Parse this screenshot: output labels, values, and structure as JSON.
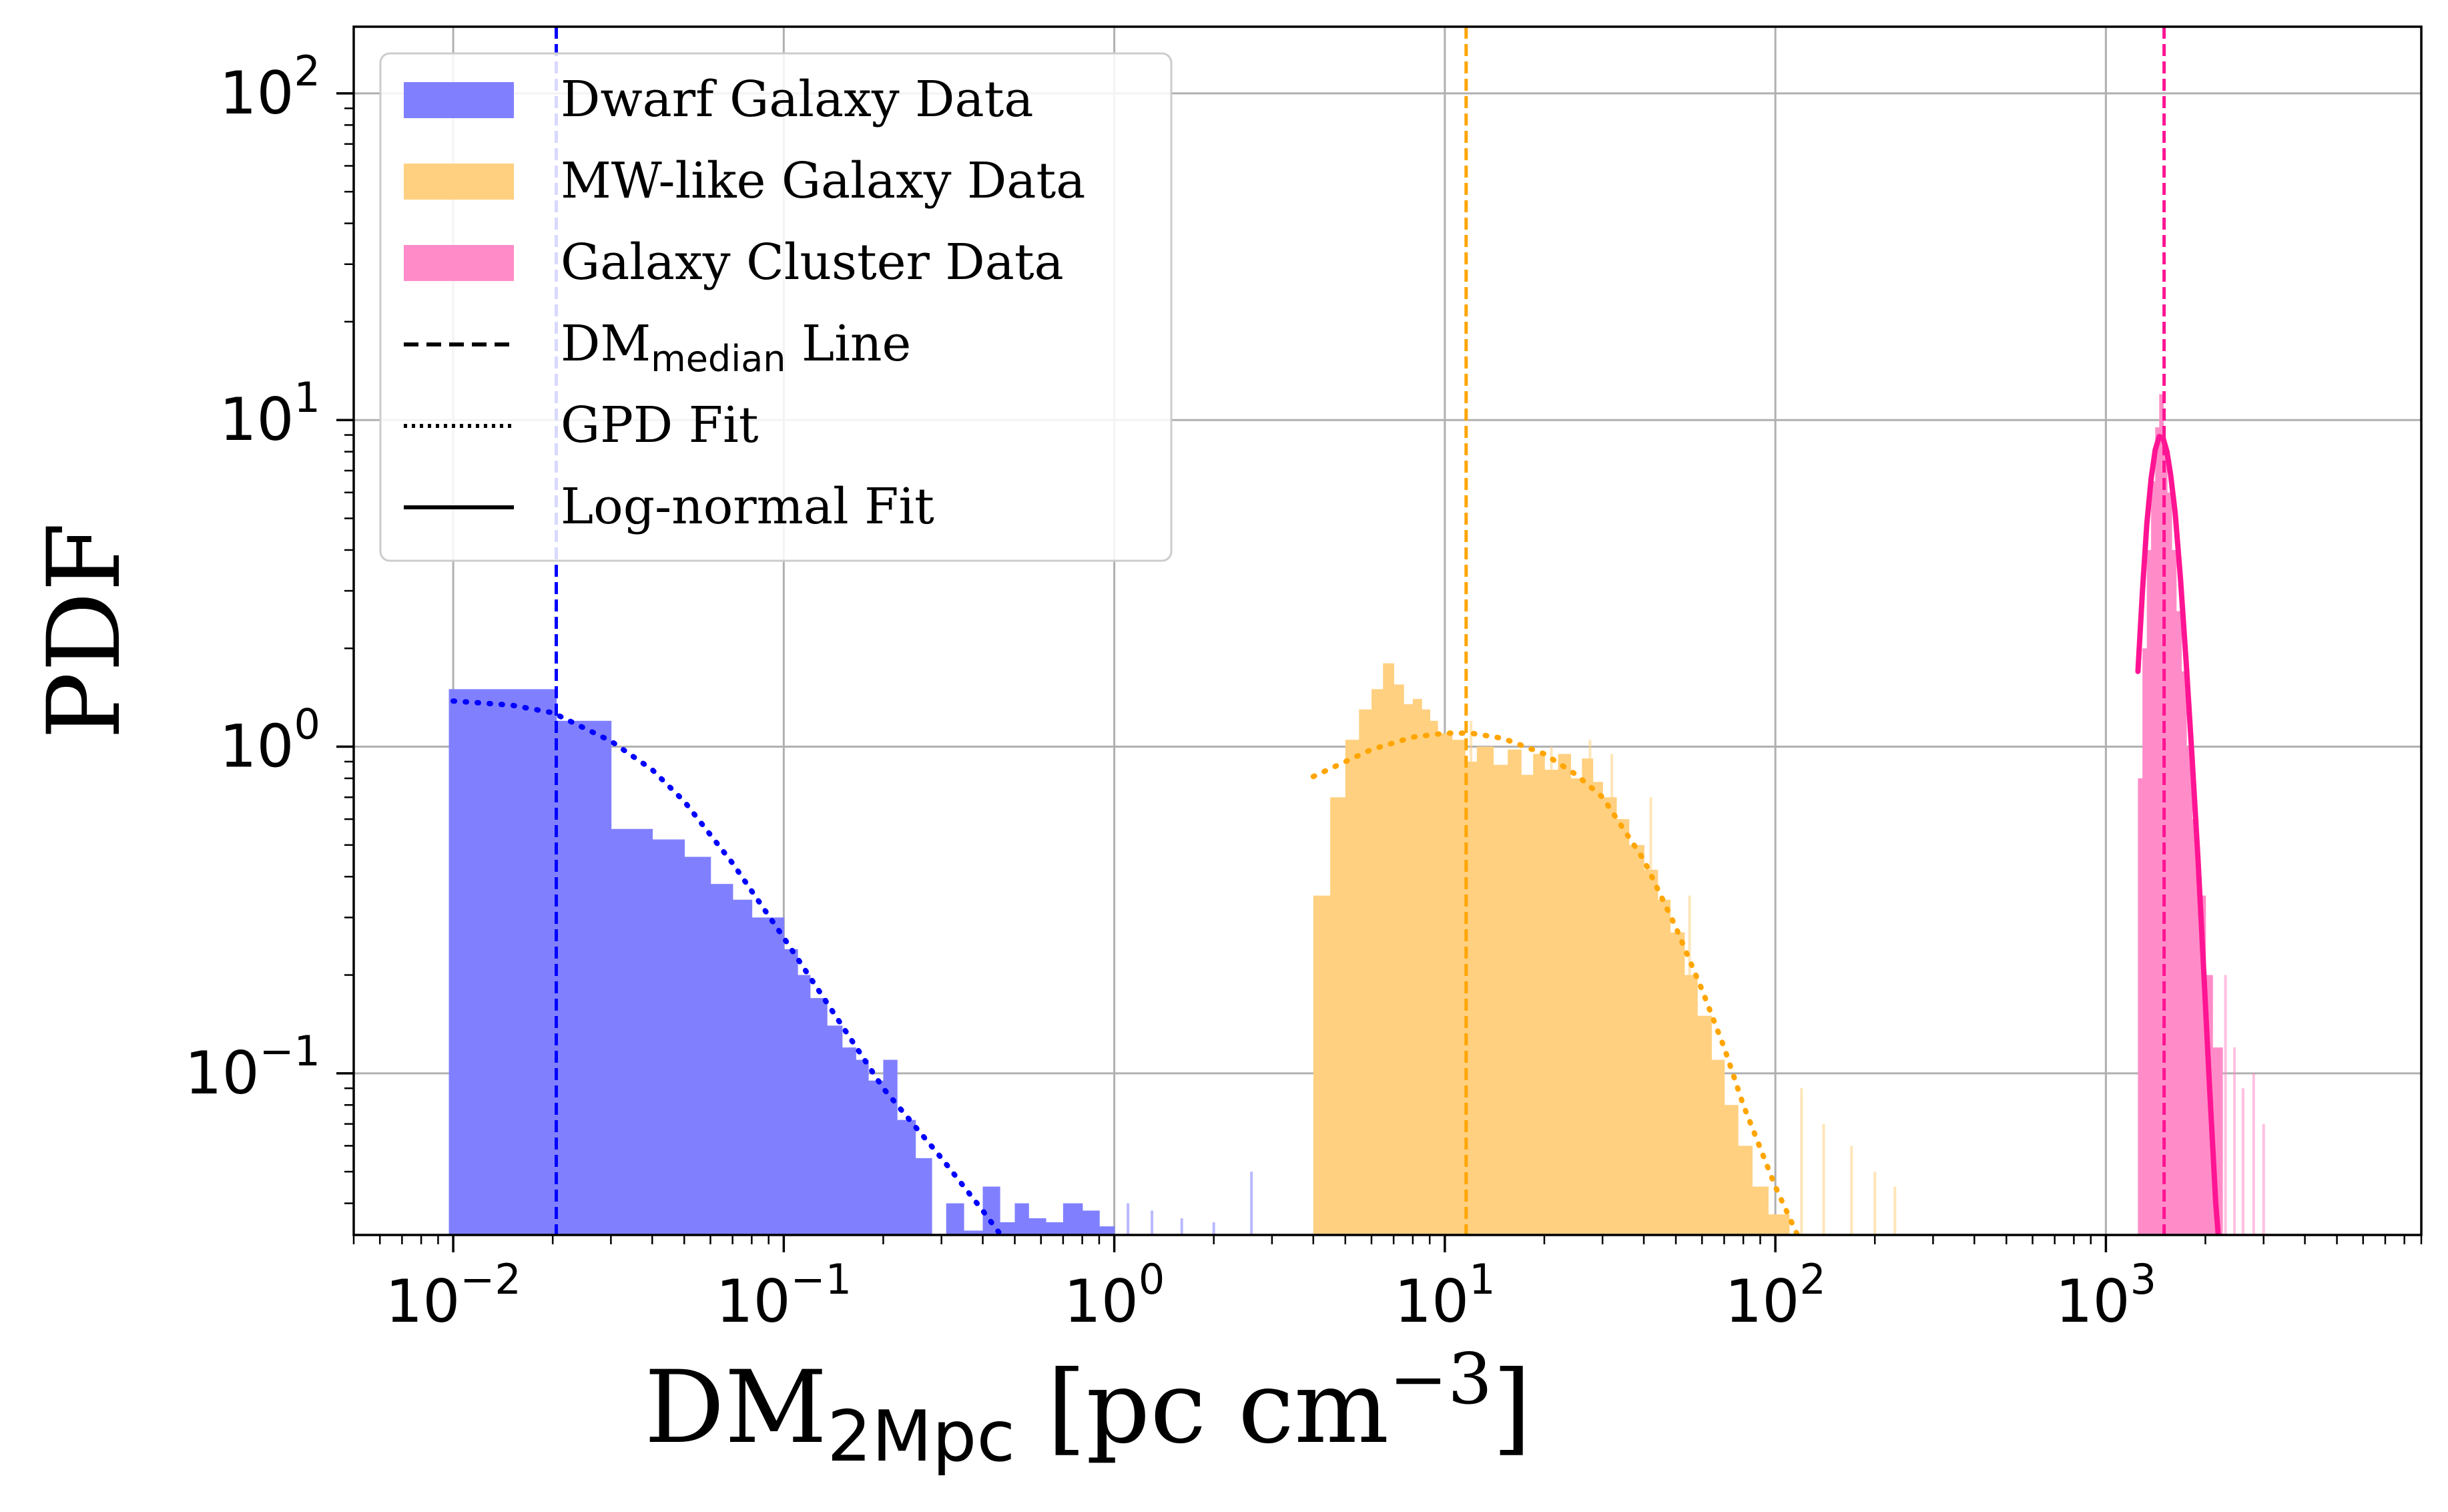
{
  "chart_data": {
    "type": "bar",
    "title": "",
    "xlabel": {
      "main": "DM",
      "sub": "2Mpc",
      "unit": " [pc cm",
      "sup": "−3",
      "close": "]"
    },
    "ylabel": "PDF",
    "xscale": "log",
    "yscale": "log",
    "xlim": [
      0.005,
      9000
    ],
    "ylim": [
      0.032,
      160
    ],
    "grid": true,
    "legend_position": "upper-left",
    "xticks": [
      {
        "base": "10",
        "exp": "−2",
        "value": 0.01
      },
      {
        "base": "10",
        "exp": "−1",
        "value": 0.1
      },
      {
        "base": "10",
        "exp": "0",
        "value": 1
      },
      {
        "base": "10",
        "exp": "1",
        "value": 10
      },
      {
        "base": "10",
        "exp": "2",
        "value": 100
      },
      {
        "base": "10",
        "exp": "3",
        "value": 1000
      }
    ],
    "yticks": [
      {
        "base": "10",
        "exp": "−1",
        "value": 0.1
      },
      {
        "base": "10",
        "exp": "0",
        "value": 1
      },
      {
        "base": "10",
        "exp": "1",
        "value": 10
      },
      {
        "base": "10",
        "exp": "2",
        "value": 100
      }
    ],
    "legend": [
      {
        "label": "Dwarf Galaxy Data",
        "kind": "patch",
        "color": "#8080ff"
      },
      {
        "label": "MW-like Galaxy Data",
        "kind": "patch",
        "color": "#ffd080"
      },
      {
        "label": "Galaxy Cluster Data",
        "kind": "patch",
        "color": "#ff8cc8"
      },
      {
        "label": "DM",
        "label_sub": "median",
        "label_after": " Line",
        "kind": "dashed",
        "color": "#000000"
      },
      {
        "label": "GPD Fit",
        "kind": "dotted",
        "color": "#000000"
      },
      {
        "label": "Log-normal Fit",
        "kind": "solid",
        "color": "#000000"
      }
    ],
    "series": [
      {
        "name": "Dwarf Galaxy Data",
        "color": "#8080ff",
        "bins": [
          [
            0.0097,
            0.0205,
            1.5
          ],
          [
            0.0205,
            0.03,
            1.2
          ],
          [
            0.03,
            0.04,
            0.56
          ],
          [
            0.04,
            0.05,
            0.52
          ],
          [
            0.05,
            0.06,
            0.46
          ],
          [
            0.06,
            0.07,
            0.38
          ],
          [
            0.07,
            0.08,
            0.34
          ],
          [
            0.08,
            0.09,
            0.3
          ],
          [
            0.09,
            0.1,
            0.3
          ],
          [
            0.1,
            0.11,
            0.24
          ],
          [
            0.11,
            0.12,
            0.2
          ],
          [
            0.12,
            0.135,
            0.17
          ],
          [
            0.135,
            0.15,
            0.14
          ],
          [
            0.15,
            0.165,
            0.12
          ],
          [
            0.165,
            0.18,
            0.11
          ],
          [
            0.18,
            0.2,
            0.095
          ],
          [
            0.2,
            0.22,
            0.11
          ],
          [
            0.22,
            0.25,
            0.072
          ],
          [
            0.25,
            0.28,
            0.055
          ],
          [
            0.28,
            0.31,
            0.03
          ],
          [
            0.31,
            0.35,
            0.04
          ],
          [
            0.35,
            0.4,
            0.033
          ],
          [
            0.4,
            0.45,
            0.045
          ],
          [
            0.45,
            0.5,
            0.035
          ],
          [
            0.5,
            0.55,
            0.04
          ],
          [
            0.55,
            0.62,
            0.036
          ],
          [
            0.62,
            0.7,
            0.035
          ],
          [
            0.7,
            0.8,
            0.04
          ],
          [
            0.8,
            0.9,
            0.038
          ],
          [
            0.9,
            1.0,
            0.034
          ]
        ],
        "spikes": [
          [
            1.1,
            0.04
          ],
          [
            1.3,
            0.038
          ],
          [
            1.6,
            0.036
          ],
          [
            2.0,
            0.035
          ],
          [
            2.6,
            0.05
          ]
        ]
      },
      {
        "name": "MW-like Galaxy Data",
        "color": "#ffd080",
        "bins": [
          [
            4.0,
            4.5,
            0.35
          ],
          [
            4.5,
            5.0,
            0.7
          ],
          [
            5.0,
            5.5,
            1.05
          ],
          [
            5.5,
            6.0,
            1.3
          ],
          [
            6.0,
            6.5,
            1.5
          ],
          [
            6.5,
            7.0,
            1.8
          ],
          [
            7.0,
            7.5,
            1.55
          ],
          [
            7.5,
            8.0,
            1.35
          ],
          [
            8.0,
            8.5,
            1.4
          ],
          [
            8.5,
            9.0,
            1.3
          ],
          [
            9.0,
            9.5,
            1.2
          ],
          [
            9.5,
            10.5,
            1.1
          ],
          [
            10.5,
            11.5,
            1.05
          ],
          [
            11.5,
            12.5,
            0.9
          ],
          [
            12.5,
            14.0,
            1.0
          ],
          [
            14.0,
            15.5,
            0.88
          ],
          [
            15.5,
            17.0,
            0.98
          ],
          [
            17.0,
            18.5,
            0.82
          ],
          [
            18.5,
            20.0,
            0.95
          ],
          [
            20.0,
            22.0,
            0.85
          ],
          [
            22.0,
            24.0,
            0.95
          ],
          [
            24.0,
            26.0,
            0.8
          ],
          [
            26.0,
            28.0,
            0.92
          ],
          [
            28.0,
            30.0,
            0.78
          ],
          [
            30.0,
            33.0,
            0.7
          ],
          [
            33.0,
            36.0,
            0.6
          ],
          [
            36.0,
            40.0,
            0.5
          ],
          [
            40.0,
            44.0,
            0.42
          ],
          [
            44.0,
            48.0,
            0.34
          ],
          [
            48.0,
            53.0,
            0.27
          ],
          [
            53.0,
            58.0,
            0.2
          ],
          [
            58.0,
            64.0,
            0.15
          ],
          [
            64.0,
            70.0,
            0.11
          ],
          [
            70.0,
            77.0,
            0.08
          ],
          [
            77.0,
            85.0,
            0.06
          ],
          [
            85.0,
            95.0,
            0.045
          ],
          [
            95.0,
            110.0,
            0.037
          ]
        ],
        "spikes": [
          [
            12.0,
            1.2
          ],
          [
            21.0,
            1.0
          ],
          [
            27.5,
            1.05
          ],
          [
            32.0,
            0.95
          ],
          [
            42.0,
            0.7
          ],
          [
            55.0,
            0.35
          ],
          [
            120.0,
            0.09
          ],
          [
            140.0,
            0.07
          ],
          [
            170.0,
            0.06
          ],
          [
            200.0,
            0.05
          ],
          [
            230.0,
            0.045
          ]
        ]
      },
      {
        "name": "Galaxy Cluster Data",
        "color": "#ff8cc8",
        "bins": [
          [
            1250,
            1290,
            0.8
          ],
          [
            1290,
            1330,
            2.0
          ],
          [
            1330,
            1370,
            4.0
          ],
          [
            1370,
            1410,
            6.5
          ],
          [
            1410,
            1450,
            9.5
          ],
          [
            1450,
            1490,
            12.0
          ],
          [
            1490,
            1530,
            8.0
          ],
          [
            1530,
            1580,
            6.0
          ],
          [
            1580,
            1630,
            4.0
          ],
          [
            1630,
            1690,
            2.6
          ],
          [
            1690,
            1750,
            1.7
          ],
          [
            1750,
            1820,
            1.0
          ],
          [
            1820,
            1900,
            0.6
          ],
          [
            1900,
            2000,
            0.35
          ],
          [
            2000,
            2100,
            0.2
          ],
          [
            2100,
            2250,
            0.12
          ]
        ],
        "spikes": [
          [
            2300,
            0.2
          ],
          [
            2450,
            0.12
          ],
          [
            2600,
            0.09
          ],
          [
            2800,
            0.1
          ],
          [
            3000,
            0.07
          ]
        ]
      }
    ],
    "median_lines": [
      {
        "series": "Dwarf Galaxy Data",
        "x": 0.0205,
        "color": "#0000ff"
      },
      {
        "series": "MW-like Galaxy Data",
        "x": 11.6,
        "color": "#ffa500"
      },
      {
        "series": "Galaxy Cluster Data",
        "x": 1500,
        "color": "#ff1493"
      }
    ],
    "gpd_fits": [
      {
        "series": "Dwarf Galaxy Data",
        "color": "#0000ff",
        "x": [
          0.01,
          0.015,
          0.02,
          0.03,
          0.04,
          0.05,
          0.07,
          0.1,
          0.15,
          0.2,
          0.3,
          0.4,
          0.5
        ],
        "y": [
          1.38,
          1.34,
          1.27,
          1.04,
          0.85,
          0.68,
          0.44,
          0.26,
          0.14,
          0.09,
          0.055,
          0.038,
          0.028
        ]
      },
      {
        "series": "MW-like Galaxy Data",
        "color": "#ffa500",
        "x": [
          4,
          5,
          6,
          8,
          10,
          12,
          15,
          20,
          25,
          30,
          40,
          50,
          60,
          70,
          80,
          100,
          120
        ],
        "y": [
          0.81,
          0.9,
          0.98,
          1.07,
          1.1,
          1.1,
          1.06,
          0.95,
          0.82,
          0.7,
          0.45,
          0.28,
          0.18,
          0.12,
          0.08,
          0.045,
          0.03
        ]
      }
    ],
    "lognormal_fits": [
      {
        "series": "Galaxy Cluster Data",
        "color": "#ff1493",
        "x": [
          1250,
          1290,
          1330,
          1370,
          1410,
          1450,
          1490,
          1530,
          1570,
          1620,
          1680,
          1750,
          1820,
          1900,
          1980,
          2060,
          2150,
          2230
        ],
        "y": [
          1.7,
          3.0,
          4.8,
          6.6,
          8.1,
          8.9,
          8.8,
          8.0,
          6.8,
          5.2,
          3.3,
          1.8,
          0.95,
          0.45,
          0.2,
          0.09,
          0.04,
          0.025
        ]
      }
    ]
  }
}
